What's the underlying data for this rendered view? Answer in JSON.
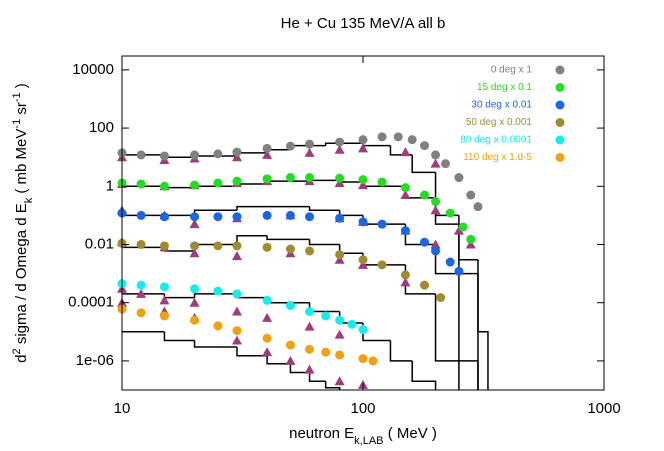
{
  "chart_data": {
    "type": "scatter",
    "title": "He + Cu   135 MeV/A   all b",
    "xlabel_parts": [
      "neutron E",
      "k,LAB",
      " ( MeV )"
    ],
    "ylabel_parts": [
      "d",
      "2",
      " sigma / d Omega d E",
      "k",
      "  ( mb  MeV",
      "-1",
      " sr",
      "-1",
      " )"
    ],
    "xscale": "log",
    "yscale": "log",
    "xlim": [
      10,
      1000
    ],
    "xticks": [
      10,
      100,
      1000
    ],
    "ylim": [
      1e-07,
      30000
    ],
    "yticks": [
      10000,
      100,
      1,
      0.01,
      0.0001,
      {
        "value": 1e-06,
        "label": "1e-06"
      }
    ],
    "legend": "top-right",
    "series": [
      {
        "name": "0 deg x 1",
        "color": "#808080",
        "marker": "circle",
        "x": [
          10,
          12,
          15,
          20,
          25,
          30,
          40,
          50,
          60,
          80,
          100,
          120,
          140,
          160,
          180,
          200,
          220,
          250,
          280,
          300
        ],
        "values": [
          14,
          12,
          11,
          12,
          13,
          15,
          20,
          24,
          28,
          33,
          40,
          50,
          50,
          40,
          25,
          12,
          6,
          2,
          0.5,
          0.2
        ]
      },
      {
        "name": "15 deg x 0.1",
        "color": "#22dd22",
        "marker": "circle",
        "x": [
          10,
          12,
          15,
          20,
          25,
          30,
          40,
          50,
          60,
          80,
          100,
          120,
          150,
          180,
          200,
          230,
          260,
          280
        ],
        "values": [
          1.3,
          1.2,
          1.0,
          1.1,
          1.3,
          1.5,
          1.8,
          2.0,
          2.0,
          1.9,
          1.7,
          1.4,
          0.9,
          0.5,
          0.3,
          0.12,
          0.04,
          0.015
        ]
      },
      {
        "name": "30 deg x 0.01",
        "color": "#1a66e6",
        "marker": "circle",
        "x": [
          10,
          12,
          15,
          20,
          25,
          30,
          40,
          50,
          60,
          80,
          100,
          120,
          150,
          180,
          200,
          230,
          250
        ],
        "values": [
          0.12,
          0.1,
          0.09,
          0.09,
          0.09,
          0.09,
          0.1,
          0.1,
          0.09,
          0.08,
          0.06,
          0.05,
          0.03,
          0.012,
          0.006,
          0.0025,
          0.0012
        ]
      },
      {
        "name": "50 deg x 0.001",
        "color": "#a08c30",
        "marker": "circle",
        "x": [
          10,
          12,
          15,
          20,
          25,
          30,
          40,
          50,
          60,
          80,
          100,
          120,
          150,
          180,
          210
        ],
        "values": [
          0.011,
          0.01,
          0.009,
          0.009,
          0.009,
          0.009,
          0.008,
          0.007,
          0.006,
          0.0045,
          0.003,
          0.002,
          0.0009,
          0.0004,
          0.00015
        ]
      },
      {
        "name": "80 deg x 0.0001",
        "color": "#11eeee",
        "marker": "circle",
        "x": [
          10,
          12,
          15,
          20,
          25,
          30,
          40,
          50,
          60,
          70,
          80,
          90,
          100
        ],
        "values": [
          0.00045,
          0.0004,
          0.00035,
          0.0003,
          0.00025,
          0.0002,
          0.00012,
          8e-05,
          5e-05,
          3.5e-05,
          2.5e-05,
          1.8e-05,
          1.2e-05
        ]
      },
      {
        "name": "110 deg x 1.d-5",
        "color": "#f0a010",
        "marker": "circle",
        "x": [
          10,
          12,
          15,
          20,
          25,
          30,
          40,
          50,
          60,
          70,
          80,
          100,
          110
        ],
        "values": [
          6e-05,
          4.5e-05,
          3.5e-05,
          2.5e-05,
          1.6e-05,
          1.1e-05,
          6e-06,
          3.5e-06,
          2.5e-06,
          2e-06,
          1.6e-06,
          1.2e-06,
          1e-06
        ]
      },
      {
        "color": "#a03c7c",
        "marker": "triangle",
        "x": [
          10,
          15,
          20,
          30,
          40,
          60,
          80,
          100,
          150,
          200
        ],
        "values": [
          10,
          8,
          9,
          10,
          12,
          14,
          18,
          20,
          15,
          6
        ]
      },
      {
        "color": "#a03c7c",
        "marker": "triangle",
        "x": [
          10,
          15,
          20,
          30,
          40,
          60,
          80,
          100,
          150,
          200,
          250,
          280
        ],
        "values": [
          1.2,
          1.0,
          1.1,
          1.3,
          1.5,
          1.5,
          1.3,
          1.1,
          0.5,
          0.15,
          0.03,
          0.01
        ]
      },
      {
        "color": "#a03c7c",
        "marker": "triangle",
        "x": [
          10,
          15,
          20,
          30,
          50,
          80,
          100,
          150,
          200
        ],
        "values": [
          0.15,
          0.1,
          0.05,
          0.08,
          0.1,
          0.08,
          0.06,
          0.03,
          0.01
        ]
      },
      {
        "color": "#a03c7c",
        "marker": "triangle",
        "x": [
          10,
          15,
          20,
          30,
          50,
          80,
          100,
          150
        ],
        "values": [
          0.012,
          0.008,
          0.005,
          0.004,
          0.005,
          0.003,
          0.002,
          0.0005
        ]
      },
      {
        "color": "#a03c7c",
        "marker": "triangle",
        "x": [
          10,
          12,
          15,
          20,
          30,
          40,
          60,
          80
        ],
        "values": [
          0.0003,
          0.0002,
          0.00012,
          0.0001,
          5e-05,
          3e-05,
          1.5e-05,
          8e-06
        ]
      },
      {
        "color": "#a03c7c",
        "marker": "triangle",
        "x": [
          10,
          15,
          20,
          30,
          40,
          50,
          60,
          80,
          100
        ],
        "values": [
          0.0001,
          5e-05,
          3e-05,
          5e-06,
          2e-06,
          1e-06,
          5e-07,
          2e-07,
          1.5e-07
        ]
      },
      {
        "color": "#000000",
        "marker": "step",
        "bins": [
          10,
          15,
          20,
          30,
          40,
          50,
          70,
          100,
          130,
          160,
          200,
          250,
          300
        ],
        "values": [
          12,
          10,
          11,
          14,
          18,
          25,
          30,
          25,
          12,
          3,
          0.1,
          0.001
        ]
      },
      {
        "color": "#000000",
        "marker": "step",
        "bins": [
          10,
          15,
          20,
          30,
          40,
          60,
          80,
          100,
          150,
          200,
          250,
          300,
          330
        ],
        "values": [
          1.0,
          0.9,
          1.0,
          1.2,
          1.5,
          1.6,
          1.4,
          1.0,
          0.4,
          0.05,
          0.003,
          1e-05
        ]
      },
      {
        "color": "#000000",
        "marker": "step",
        "bins": [
          10,
          15,
          20,
          30,
          40,
          60,
          80,
          100,
          150,
          200,
          250,
          300
        ],
        "values": [
          0.1,
          0.1,
          0.15,
          0.2,
          0.2,
          0.15,
          0.1,
          0.05,
          0.01,
          0.001,
          1e-06
        ]
      },
      {
        "color": "#000000",
        "marker": "step",
        "bins": [
          10,
          15,
          20,
          30,
          40,
          60,
          80,
          100,
          150,
          200,
          250
        ],
        "values": [
          0.008,
          0.006,
          0.01,
          0.02,
          0.015,
          0.01,
          0.005,
          0.002,
          0.0002,
          1e-06
        ]
      },
      {
        "color": "#000000",
        "marker": "step",
        "bins": [
          10,
          15,
          20,
          30,
          40,
          60,
          80,
          100,
          130,
          160,
          200
        ],
        "values": [
          0.0002,
          0.00015,
          0.0002,
          0.00015,
          0.0001,
          5e-05,
          2e-05,
          5e-06,
          1e-06,
          2e-07
        ]
      },
      {
        "color": "#000000",
        "marker": "step",
        "bins": [
          10,
          15,
          20,
          30,
          40,
          50,
          60,
          70,
          80
        ],
        "values": [
          1e-05,
          5e-06,
          3e-06,
          1.5e-06,
          8e-07,
          4e-07,
          2e-07,
          1.2e-07
        ]
      }
    ]
  }
}
